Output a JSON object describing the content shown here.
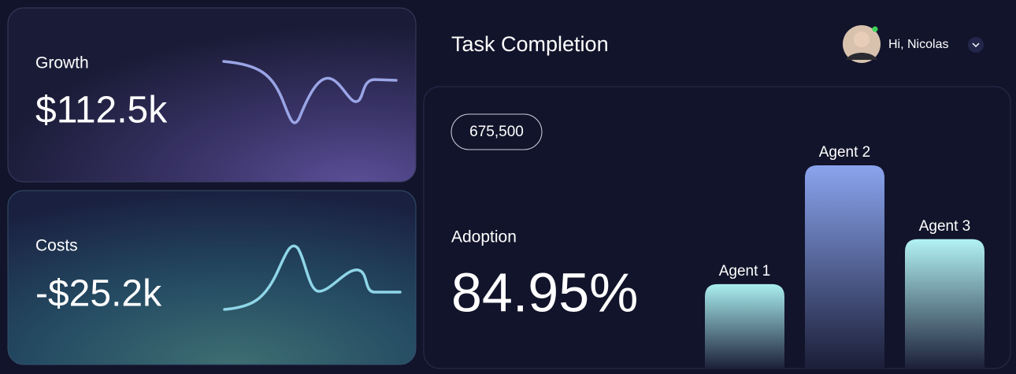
{
  "header": {
    "title": "Task Completion",
    "greeting": "Hi, Nicolas"
  },
  "cards": [
    {
      "title": "Growth",
      "value": "$112.5k"
    },
    {
      "title": "Costs",
      "value": "-$25.2k"
    }
  ],
  "task_completion": {
    "badge": "675,500",
    "label": "Adoption",
    "value": "84.95%",
    "chart_data": {
      "type": "bar",
      "categories": [
        "Agent 1",
        "Agent 2",
        "Agent 3"
      ],
      "values": [
        107,
        255,
        163
      ]
    }
  }
}
